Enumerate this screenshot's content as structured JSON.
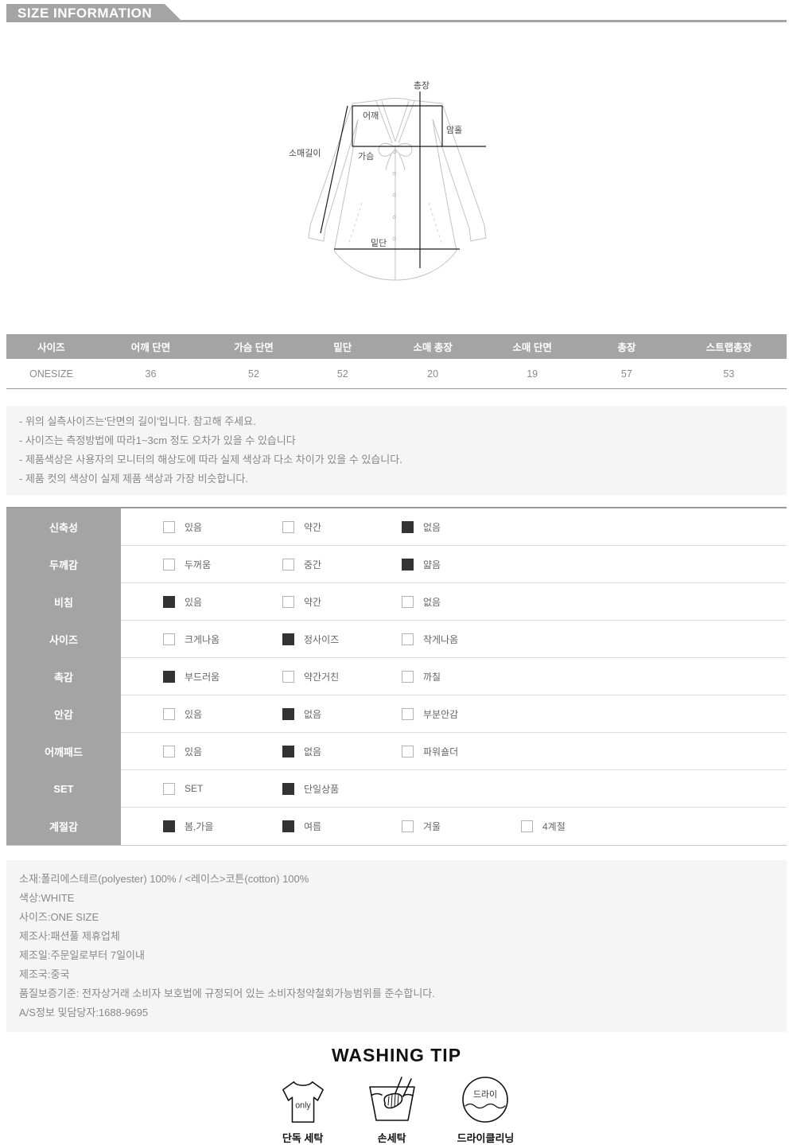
{
  "page": {
    "title": "SIZE INFORMATION"
  },
  "diagram": {
    "labels": {
      "total_length": "총장",
      "shoulder": "어깨",
      "armhole": "암홀",
      "sleeve_length": "소매길이",
      "chest": "가슴",
      "hem": "밑단"
    }
  },
  "size_table": {
    "columns": [
      "사이즈",
      "어깨 단면",
      "가슴 단면",
      "밑단",
      "소매 총장",
      "소매 단면",
      "총장",
      "스트랩총장"
    ],
    "rows": [
      [
        "ONESIZE",
        "36",
        "52",
        "52",
        "20",
        "19",
        "57",
        "53"
      ]
    ]
  },
  "notes": [
    "- 위의 실측사이즈는'단면의 길이'입니다. 참고해 주세요.",
    "- 사이즈는 측정방법에 따라1~3cm 정도 오차가 있을 수 있습니다",
    "- 제품색상은 사용자의 모니터의 해상도에 따라 실제 색상과 다소 차이가 있을 수 있습니다.",
    "- 제품 컷의 색상이 실제 제품 색상과 가장 비슷합니다."
  ],
  "attributes": [
    {
      "label": "신축성",
      "options": [
        {
          "text": "있음",
          "checked": false
        },
        {
          "text": "약간",
          "checked": false
        },
        {
          "text": "없음",
          "checked": true
        }
      ]
    },
    {
      "label": "두께감",
      "options": [
        {
          "text": "두꺼움",
          "checked": false
        },
        {
          "text": "중간",
          "checked": false
        },
        {
          "text": "얇음",
          "checked": true
        }
      ]
    },
    {
      "label": "비침",
      "options": [
        {
          "text": "있음",
          "checked": true
        },
        {
          "text": "약간",
          "checked": false
        },
        {
          "text": "없음",
          "checked": false
        }
      ]
    },
    {
      "label": "사이즈",
      "options": [
        {
          "text": "크게나옴",
          "checked": false
        },
        {
          "text": "정사이즈",
          "checked": true
        },
        {
          "text": "작게나옴",
          "checked": false
        }
      ]
    },
    {
      "label": "촉감",
      "options": [
        {
          "text": "부드러움",
          "checked": true
        },
        {
          "text": "약간거친",
          "checked": false
        },
        {
          "text": "까칠",
          "checked": false
        }
      ]
    },
    {
      "label": "안감",
      "options": [
        {
          "text": "있음",
          "checked": false
        },
        {
          "text": "없음",
          "checked": true
        },
        {
          "text": "부분안감",
          "checked": false
        }
      ]
    },
    {
      "label": "어깨패드",
      "options": [
        {
          "text": "있음",
          "checked": false
        },
        {
          "text": "없음",
          "checked": true
        },
        {
          "text": "파워숄더",
          "checked": false
        }
      ]
    },
    {
      "label": "SET",
      "options": [
        {
          "text": "SET",
          "checked": false
        },
        {
          "text": "단일상품",
          "checked": true
        }
      ]
    },
    {
      "label": "계절감",
      "options": [
        {
          "text": "봄,가을",
          "checked": true
        },
        {
          "text": "여름",
          "checked": true
        },
        {
          "text": "겨울",
          "checked": false
        },
        {
          "text": "4계절",
          "checked": false
        }
      ]
    }
  ],
  "product_info": [
    "소재:폴리에스테르(polyester) 100% / <레이스>코튼(cotton) 100%",
    "색상:WHITE",
    "사이즈:ONE SIZE",
    "제조사:패션풀 제휴업체",
    "제조일:주문일로부터 7일이내",
    "제조국:중국",
    "품질보증기준: 전자상거래 소비자 보호법에 규정되어 있는 소비자청약철회가능범위를 준수합니다.",
    "A/S정보 및담당자:1688-9695"
  ],
  "washing": {
    "title": "WASHING TIP",
    "tshirt_text": "only",
    "dry_text": "드라이",
    "items": [
      {
        "icon": "tshirt-only-icon",
        "label": "단독 세탁"
      },
      {
        "icon": "hand-wash-icon",
        "label": "손세탁"
      },
      {
        "icon": "dry-clean-icon",
        "label": "드라이클리닝"
      }
    ]
  },
  "colors": {
    "bar_gray": "#a4a4a4",
    "checked_box": "#333333",
    "panel_bg": "#f5f5f5",
    "body_text": "#888888"
  }
}
